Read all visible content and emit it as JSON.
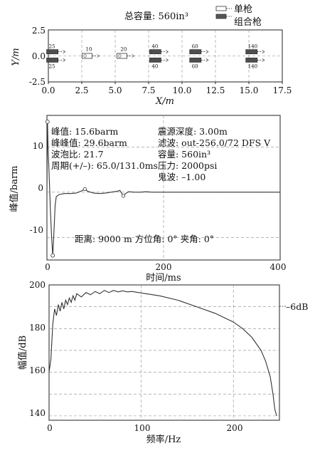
{
  "panel1": {
    "title": "总容量: 560in³",
    "legend": {
      "single": "单枪",
      "cluster": "组合枪"
    },
    "xlabel": "X/m",
    "ylabel": "Y/m",
    "xticks": [
      "0.0",
      "2.5",
      "5.0",
      "7.5",
      "10.0",
      "12.5",
      "15.0",
      "17.5"
    ],
    "yticks": [
      "2.5",
      "0.0",
      "-2.5"
    ],
    "gun_labels": [
      "25",
      "10",
      "20",
      "40",
      "60",
      "140",
      "25",
      "40",
      "60",
      "140"
    ]
  },
  "panel2": {
    "xlabel": "时间/ms",
    "ylabel": "峰值/barm",
    "xticks": [
      "0",
      "200",
      "400"
    ],
    "yticks": [
      "10",
      "0",
      "-10"
    ],
    "left_annotations": [
      "峰值: 15.6barm",
      "峰峰值: 29.6barm",
      "波泡比: 21.7",
      "周期(+/–): 65.0/131.0ms"
    ],
    "right_annotations": [
      "震源深度: 3.00m",
      "滤波: out-256.0/72 DFS V",
      "容量: 560in³",
      "压力: 2000psi",
      "鬼波: –1.00"
    ],
    "bottom_note": "距离: 9000 m  方位角: 0°  夹角: 0°"
  },
  "panel3": {
    "xlabel": "频率/Hz",
    "ylabel": "幅值/dB",
    "xticks": [
      "0",
      "100",
      "200"
    ],
    "yticks": [
      "200",
      "180",
      "160",
      "140"
    ],
    "marker": "–6dB"
  },
  "chart_data": [
    {
      "type": "scatter",
      "title": "总容量: 560in³",
      "xlabel": "X/m",
      "ylabel": "Y/m",
      "xlim": [
        0,
        17.5
      ],
      "ylim": [
        -2.5,
        2.5
      ],
      "series": [
        {
          "name": "单枪",
          "points": [
            {
              "x": 2.9,
              "y": 0.0,
              "volume": 10
            },
            {
              "x": 5.5,
              "y": 0.0,
              "volume": 20
            }
          ]
        },
        {
          "name": "组合枪",
          "points": [
            {
              "x": 0.3,
              "y": 0.4,
              "volume": 25
            },
            {
              "x": 0.3,
              "y": -0.4,
              "volume": 25
            },
            {
              "x": 8.0,
              "y": 0.4,
              "volume": 40
            },
            {
              "x": 8.0,
              "y": -0.4,
              "volume": 40
            },
            {
              "x": 11.0,
              "y": 0.4,
              "volume": 60
            },
            {
              "x": 11.0,
              "y": -0.4,
              "volume": 60
            },
            {
              "x": 15.2,
              "y": 0.4,
              "volume": 140
            },
            {
              "x": 15.2,
              "y": -0.4,
              "volume": 140
            }
          ]
        }
      ],
      "grid": true,
      "legend": "top-right"
    },
    {
      "type": "line",
      "xlabel": "时间/ms",
      "ylabel": "峰值/barm",
      "xlim": [
        0,
        400
      ],
      "ylim": [
        -15,
        17
      ],
      "x": [
        0,
        1,
        2,
        4,
        6,
        8,
        10,
        12,
        14,
        16,
        20,
        25,
        30,
        40,
        50,
        60,
        65,
        70,
        80,
        90,
        100,
        110,
        120,
        125,
        131,
        135,
        140,
        150,
        160,
        170,
        180,
        190,
        200,
        250,
        300,
        350,
        400
      ],
      "y": [
        0,
        15.6,
        10.0,
        3.0,
        -4.0,
        -10.0,
        -14.0,
        -9.0,
        -3.0,
        -1.0,
        -0.6,
        -0.4,
        -0.3,
        -0.3,
        -0.2,
        0.3,
        0.7,
        0.2,
        -0.2,
        -0.3,
        -0.2,
        0.0,
        0.2,
        0.4,
        -0.8,
        -0.3,
        0.1,
        0.0,
        0.0,
        0.1,
        0.0,
        0.0,
        0.0,
        0.0,
        0.0,
        0.0,
        0.0
      ],
      "grid": true
    },
    {
      "type": "line",
      "xlabel": "频率/Hz",
      "ylabel": "幅值/dB",
      "xlim": [
        0,
        250
      ],
      "ylim": [
        138,
        200
      ],
      "x": [
        0,
        2,
        4,
        6,
        8,
        10,
        12,
        14,
        16,
        18,
        20,
        22,
        24,
        26,
        28,
        30,
        35,
        40,
        45,
        50,
        55,
        60,
        65,
        70,
        75,
        80,
        85,
        90,
        100,
        120,
        140,
        160,
        180,
        200,
        210,
        220,
        230,
        235,
        240,
        243,
        245,
        247
      ],
      "y": [
        160,
        166,
        182,
        189,
        186,
        191,
        188,
        192,
        189,
        193,
        191,
        194,
        192,
        195,
        193,
        196,
        194.5,
        196.5,
        195.5,
        197,
        196,
        197.5,
        196.5,
        197.5,
        196.8,
        197.3,
        196.8,
        197,
        196.3,
        195,
        193,
        190,
        187,
        183,
        180,
        176,
        170,
        165,
        158,
        150,
        143,
        140
      ],
      "reference_line": {
        "label": "–6dB",
        "y": 190
      },
      "grid": true
    }
  ]
}
